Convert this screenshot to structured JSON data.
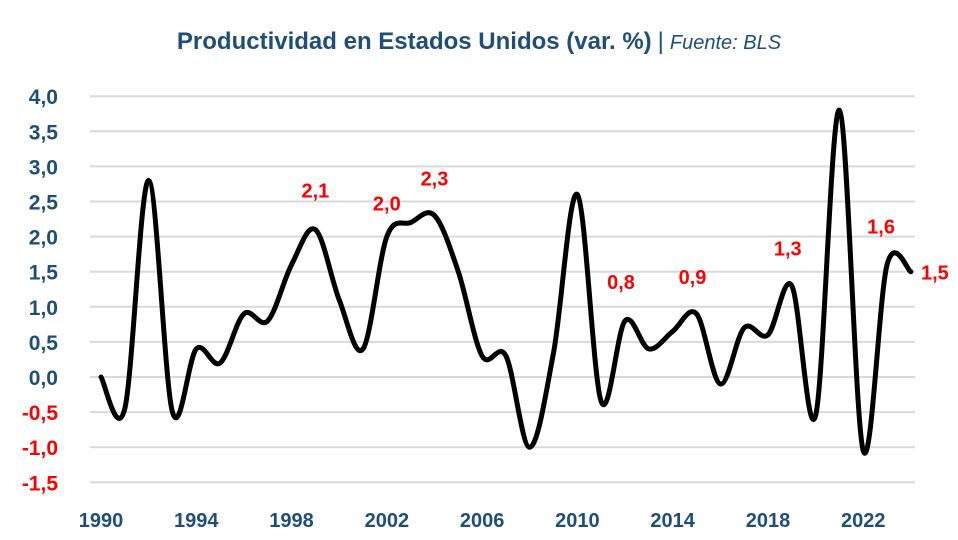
{
  "chart_data": {
    "type": "line",
    "title": "Productividad en Estados Unidos (var. %)",
    "subtitle": "Fuente: BLS",
    "separator": "|",
    "xlabel": "",
    "ylabel": "",
    "ylim": [
      -1.5,
      4.0
    ],
    "yticks": [
      "4,0",
      "3,5",
      "3,0",
      "2,5",
      "2,0",
      "1,5",
      "1,0",
      "0,5",
      "0,0",
      "-0,5",
      "-1,0",
      "-1,5"
    ],
    "ytick_values": [
      4.0,
      3.5,
      3.0,
      2.5,
      2.0,
      1.5,
      1.0,
      0.5,
      0.0,
      -0.5,
      -1.0,
      -1.5
    ],
    "xticks": [
      "1990",
      "1994",
      "1998",
      "2002",
      "2006",
      "2010",
      "2014",
      "2018",
      "2022"
    ],
    "grid": true,
    "smooth": true,
    "x": [
      1990,
      1991,
      1992,
      1993,
      1994,
      1995,
      1996,
      1997,
      1998,
      1999,
      2000,
      2001,
      2002,
      2003,
      2004,
      2005,
      2006,
      2007,
      2008,
      2009,
      2010,
      2011,
      2012,
      2013,
      2014,
      2015,
      2016,
      2017,
      2018,
      2019,
      2020,
      2021,
      2022,
      2023,
      2024
    ],
    "series": [
      {
        "values": [
          0.0,
          -0.45,
          2.8,
          -0.5,
          0.4,
          0.2,
          0.9,
          0.8,
          1.6,
          2.1,
          1.1,
          0.4,
          2.0,
          2.2,
          2.3,
          1.5,
          0.3,
          0.3,
          -1.0,
          0.35,
          2.6,
          -0.35,
          0.8,
          0.4,
          0.65,
          0.9,
          -0.1,
          0.7,
          0.6,
          1.3,
          -0.55,
          3.8,
          -1.05,
          1.6,
          1.5
        ]
      }
    ],
    "data_labels": [
      {
        "x": 1999,
        "text": "2,1"
      },
      {
        "x": 2002,
        "text": "2,0"
      },
      {
        "x": 2004,
        "text": "2,3"
      },
      {
        "x": 2012,
        "text": "0,8"
      },
      {
        "x": 2015,
        "text": "0,9"
      },
      {
        "x": 2019,
        "text": "1,3"
      },
      {
        "x": 2023,
        "text": "1,6"
      },
      {
        "x": 2024,
        "text": "1,5"
      }
    ],
    "colors": {
      "line": "#000000",
      "title": "#1f4e79",
      "axis_text": "#1f4e79",
      "negative_ticks": "#ff0000",
      "data_labels": "#ff0000",
      "grid": "#d9d9d9"
    }
  }
}
